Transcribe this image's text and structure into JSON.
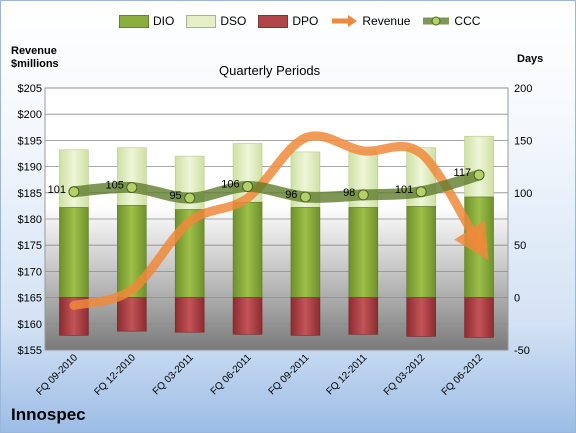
{
  "company": "Innospec",
  "chart_data": {
    "type": "bar",
    "title": "Quarterly Periods",
    "left_axis_title": "Revenue\n$millions",
    "right_axis_title": "Days",
    "categories": [
      "FQ 09-2010",
      "FQ 12-2010",
      "FQ 03-2011",
      "FQ 06-2011",
      "FQ 09-2011",
      "FQ 12-2011",
      "FQ 03-2012",
      "FQ 06-2012"
    ],
    "left_axis": {
      "min": 155,
      "max": 205,
      "step": 5,
      "format": "$"
    },
    "right_axis": {
      "min": -50,
      "max": 200,
      "step": 50
    },
    "series": [
      {
        "name": "DIO",
        "kind": "bar",
        "axis": "right",
        "color": "#8aad3e",
        "values": [
          86,
          88,
          84,
          91,
          86,
          86,
          87,
          96
        ]
      },
      {
        "name": "DSO",
        "kind": "bar-stacked",
        "axis": "right",
        "color": "#e4efc6",
        "values": [
          55,
          55,
          51,
          56,
          53,
          54,
          56,
          58
        ]
      },
      {
        "name": "DPO",
        "kind": "bar-negative",
        "axis": "right",
        "color": "#b0464a",
        "values": [
          -36,
          -32,
          -33,
          -35,
          -36,
          -35,
          -37,
          -38
        ]
      },
      {
        "name": "Revenue",
        "kind": "line",
        "axis": "left",
        "color": "#f0883a",
        "values": [
          163.5,
          166.5,
          179.5,
          184,
          195.5,
          193,
          192.5,
          175
        ]
      },
      {
        "name": "CCC",
        "kind": "line",
        "axis": "right",
        "color": "#5f7d2c",
        "values": [
          101,
          105,
          95,
          106,
          96,
          98,
          101,
          117
        ],
        "labels": [
          "101",
          "105",
          "95",
          "106",
          "96",
          "98",
          "101",
          "117"
        ]
      }
    ],
    "grid": true,
    "legend_position": "top"
  }
}
